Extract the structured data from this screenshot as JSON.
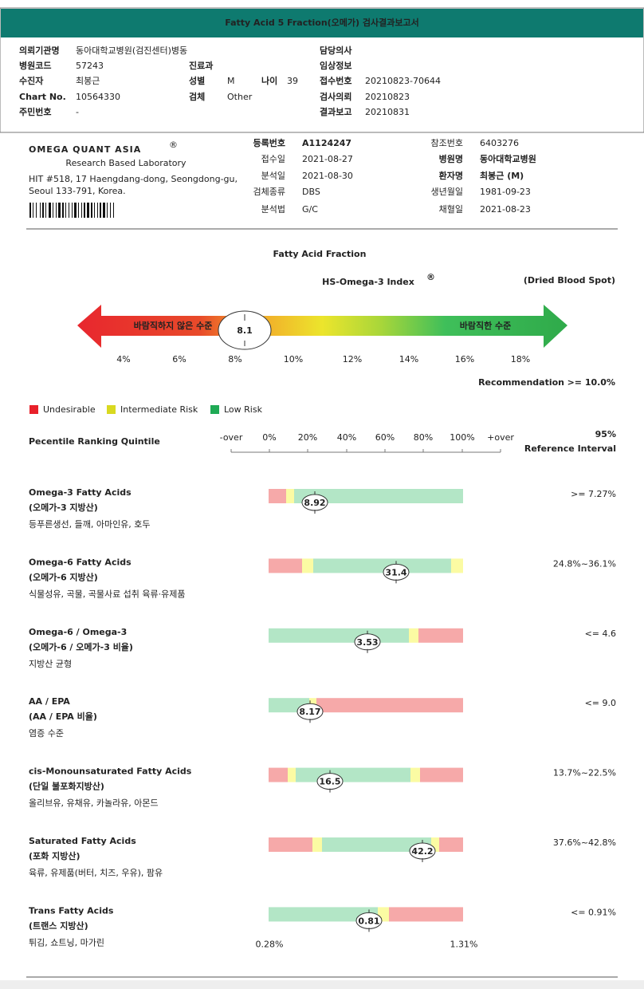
{
  "header": {
    "title": "Fatty Acid 5 Fraction(오메가) 검사결과보고서"
  },
  "patient": {
    "institution": {
      "label": "의뢰기관명",
      "value": "동아대학교병원(검진센터)병동"
    },
    "doctor": {
      "label": "담당의사"
    },
    "hospital_code": {
      "label": "병원코드",
      "value": "57243"
    },
    "department": {
      "label": "진료과"
    },
    "clinical_info": {
      "label": "임상정보"
    },
    "examinee": {
      "label": "수진자",
      "value": "최봉근"
    },
    "sex": {
      "label": "성별",
      "value": "M"
    },
    "age": {
      "label": "나이",
      "value": "39"
    },
    "receipt_no": {
      "label": "접수번호",
      "value": "20210823-70644"
    },
    "chart_no": {
      "label": "Chart No.",
      "value": "10564330"
    },
    "specimen": {
      "label": "검체",
      "value": "Other"
    },
    "request": {
      "label": "검사의뢰",
      "value": "20210823"
    },
    "resident_no": {
      "label": "주민번호",
      "value": "-"
    },
    "report": {
      "label": "결과보고",
      "value": "20210831"
    }
  },
  "lab": {
    "name": "OMEGA QUANT ASIA",
    "reg": "®",
    "tagline": "Research Based Laboratory",
    "address": [
      "HIT #518, 17 Haengdang-dong, Seongdong-gu,",
      "Seoul 133-791, Korea."
    ],
    "left": [
      {
        "label": "등록번호",
        "value": "A1124247"
      },
      {
        "label": "접수일",
        "value": "2021-08-27"
      },
      {
        "label": "분석일",
        "value": "2021-08-30"
      },
      {
        "label": "검체종류",
        "value": "DBS"
      },
      {
        "label": "분석법",
        "value": "G/C"
      }
    ],
    "right": [
      {
        "label": "참조번호",
        "value": "6403276"
      },
      {
        "label": "병원명",
        "value": "동아대학교병원"
      },
      {
        "label": "환자명",
        "value": "최봉근 (M)"
      },
      {
        "label": "생년월일",
        "value": "1981-09-23"
      },
      {
        "label": "채혈일",
        "value": "2021-08-23"
      }
    ]
  },
  "index": {
    "title": "Fatty Acid Fraction",
    "subtitle": "HS-Omega-3 Index",
    "sup": "®",
    "specimen": "(Dried Blood Spot)",
    "low_label": "바람직하지 않은 수준",
    "high_label": "바람직한 수준",
    "value": "8.1",
    "ticks": [
      "4%",
      "6%",
      "8%",
      "10%",
      "12%",
      "14%",
      "16%",
      "18%"
    ],
    "recommendation_label": "Recommendation",
    "recommendation": ">= 10.0%"
  },
  "legend": [
    "Undesirable",
    "Intermediate Risk",
    "Low Risk"
  ],
  "ranking": {
    "title": "Pecentile Ranking Quintile",
    "ticks": [
      "-over",
      "0%",
      "20%",
      "40%",
      "60%",
      "80%",
      "100%",
      "+over"
    ],
    "ref_title": [
      "95%",
      "Reference Interval"
    ]
  },
  "items": [
    {
      "name": "Omega-3 Fatty Acids",
      "name_ko": "(오메가-3 지방산)",
      "foods": "등푸른생선, 들깨, 아마인유, 호두",
      "value": 8.92,
      "reference": ">= 7.27%"
    },
    {
      "name": "Omega-6 Fatty Acids",
      "name_ko": "(오메가-6 지방산)",
      "foods": "식물성유, 곡물, 곡물사료 섭취 육류·유제품",
      "value": 31.4,
      "reference": "24.8%~36.1%"
    },
    {
      "name": "Omega-6 / Omega-3",
      "name_ko": "(오메가-6 / 오메가-3 비율)",
      "foods": "지방산 균형",
      "value": 3.53,
      "reference": "<= 4.6"
    },
    {
      "name": "AA / EPA",
      "name_ko": "(AA / EPA 비율)",
      "foods": "염증 수준",
      "value": 8.17,
      "reference": "<= 9.0"
    },
    {
      "name": "cis-Monounsaturated Fatty Acids",
      "name_ko": "(단일 불포화지방산)",
      "foods": "올리브유, 유채유, 카놀라유, 아몬드",
      "value": 16.5,
      "reference": "13.7%~22.5%"
    },
    {
      "name": "Saturated Fatty Acids",
      "name_ko": "(포화 지방산)",
      "foods": "육류, 유제품(버터, 치즈, 우유), 팜유",
      "value": 42.2,
      "reference": "37.6%~42.8%"
    },
    {
      "name": "Trans Fatty Acids",
      "name_ko": "(트랜스 지방산)",
      "foods": "튀김, 쇼트닝, 마가린",
      "value": 0.81,
      "reference": "<= 0.91%",
      "scale_min": "0.28%",
      "scale_max": "1.31%"
    }
  ]
}
